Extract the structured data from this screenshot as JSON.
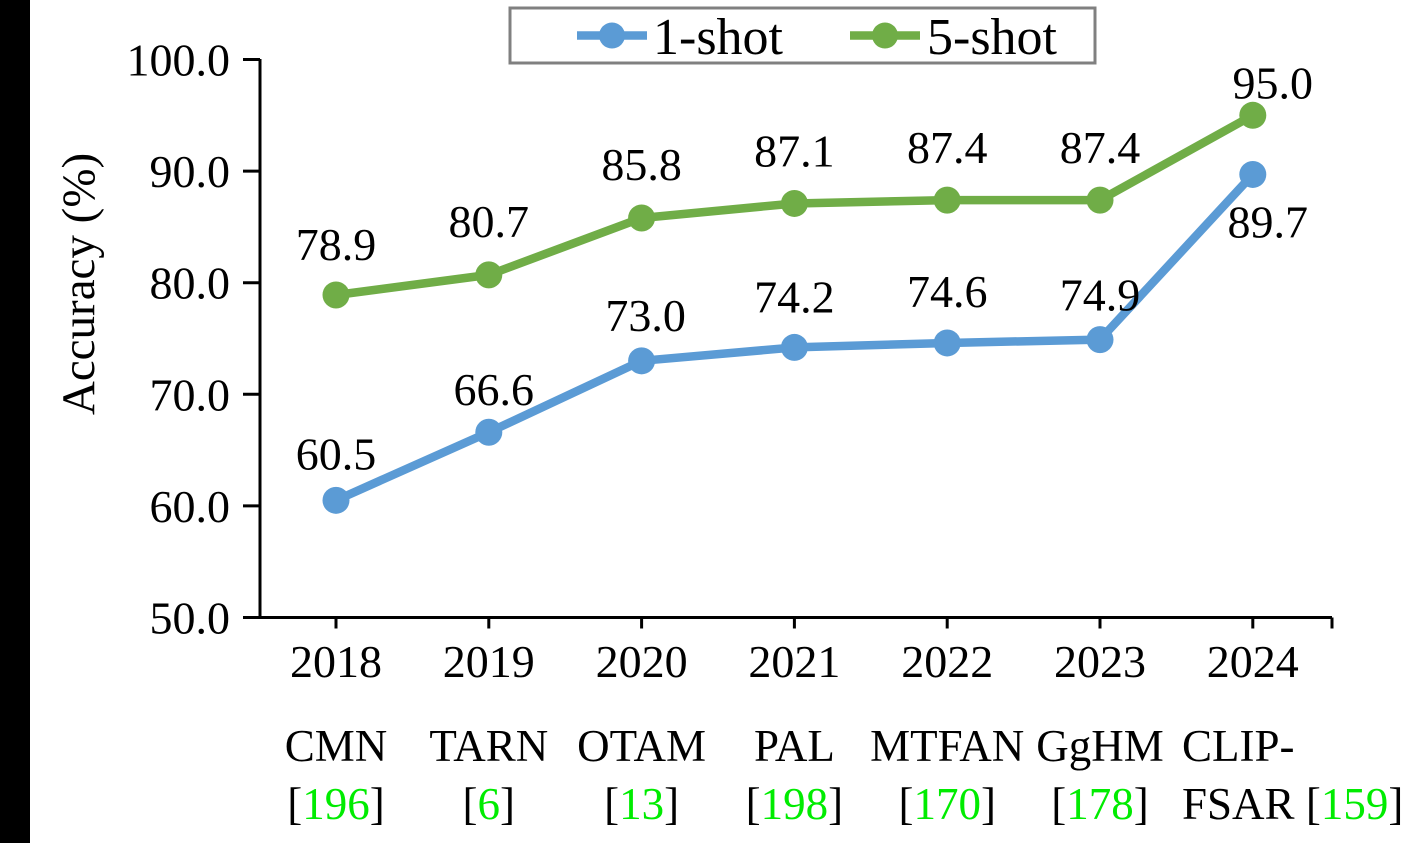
{
  "chart_data": {
    "type": "line",
    "title": "",
    "ylabel": "Accuracy (%)",
    "ylim": [
      50,
      100
    ],
    "ytick_step": 10,
    "ytick_labels": [
      "100.0",
      "90.0",
      "80.0",
      "70.0",
      "60.0",
      "50.0"
    ],
    "categories": [
      "2018",
      "2019",
      "2020",
      "2021",
      "2022",
      "2023",
      "2024"
    ],
    "methods": [
      {
        "line1": "CMN",
        "line2_prefix": "",
        "cite_open": "[",
        "cite_num": "196",
        "cite_close": "]"
      },
      {
        "line1": "TARN",
        "line2_prefix": "",
        "cite_open": "[",
        "cite_num": "6",
        "cite_close": "]"
      },
      {
        "line1": "OTAM",
        "line2_prefix": "",
        "cite_open": "[",
        "cite_num": "13",
        "cite_close": "]"
      },
      {
        "line1": "PAL",
        "line2_prefix": "",
        "cite_open": "[",
        "cite_num": "198",
        "cite_close": "]"
      },
      {
        "line1": "MTFAN",
        "line2_prefix": "",
        "cite_open": "[",
        "cite_num": "170",
        "cite_close": "]"
      },
      {
        "line1": "GgHM",
        "line2_prefix": "",
        "cite_open": "[",
        "cite_num": "178",
        "cite_close": "]"
      },
      {
        "line1": "CLIP-",
        "line2_prefix": "FSAR ",
        "cite_open": "[",
        "cite_num": "159",
        "cite_close": "]"
      }
    ],
    "series": [
      {
        "name": "1-shot",
        "color": "#5B9BD5",
        "values": [
          60.5,
          66.6,
          73.0,
          74.2,
          74.6,
          74.9,
          89.7
        ],
        "labels": [
          "60.5",
          "66.6",
          "73.0",
          "74.2",
          "74.6",
          "74.9",
          "89.7"
        ]
      },
      {
        "name": "5-shot",
        "color": "#70AD47",
        "values": [
          78.9,
          80.7,
          85.8,
          87.1,
          87.4,
          87.4,
          95.0
        ],
        "labels": [
          "78.9",
          "80.7",
          "85.8",
          "87.1",
          "87.4",
          "87.4",
          "95.0"
        ]
      }
    ],
    "legend": {
      "position": "top-center",
      "border_color": "#808080"
    },
    "grid": false,
    "axis_color": "#000000",
    "text_color": "#000000",
    "citation_color": "#00EC00",
    "left_bar_color": "#000000"
  }
}
